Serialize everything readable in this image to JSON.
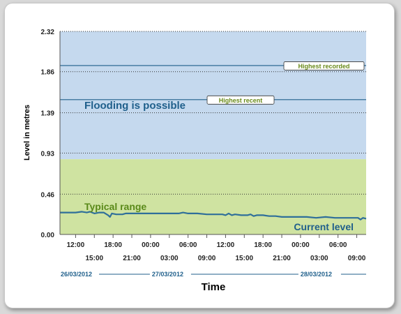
{
  "chart_data": {
    "type": "line",
    "ylabel": "Level in metres",
    "xlabel": "Time",
    "ylim": [
      0.0,
      2.32
    ],
    "yticks": [
      "2.32",
      "1.86",
      "1.39",
      "0.93",
      "0.46",
      "0.00"
    ],
    "ytick_values": [
      2.32,
      1.86,
      1.39,
      0.93,
      0.46,
      0.0
    ],
    "xlim_hours": [
      -2.5,
      46.5
    ],
    "xticks": [
      {
        "label": "12:00",
        "hour": 0
      },
      {
        "label": "15:00",
        "hour": 3
      },
      {
        "label": "18:00",
        "hour": 6
      },
      {
        "label": "21:00",
        "hour": 9
      },
      {
        "label": "00:00",
        "hour": 12
      },
      {
        "label": "03:00",
        "hour": 15
      },
      {
        "label": "06:00",
        "hour": 18
      },
      {
        "label": "09:00",
        "hour": 21
      },
      {
        "label": "12:00",
        "hour": 24
      },
      {
        "label": "15:00",
        "hour": 27
      },
      {
        "label": "18:00",
        "hour": 30
      },
      {
        "label": "21:00",
        "hour": 33
      },
      {
        "label": "00:00",
        "hour": 36
      },
      {
        "label": "03:00",
        "hour": 39
      },
      {
        "label": "06:00",
        "hour": 42
      },
      {
        "label": "09:00",
        "hour": 45
      }
    ],
    "dates": [
      {
        "label": "26/03/2012",
        "start_hour": -2.5,
        "end_hour": 12
      },
      {
        "label": "27/03/2012",
        "start_hour": 12,
        "end_hour": 36
      },
      {
        "label": "28/03/2012",
        "start_hour": 36,
        "end_hour": 46.5
      }
    ],
    "zones": [
      {
        "name": "Flooding is possible",
        "from": 0.86,
        "to": 2.32,
        "color": "#c5d9ee"
      },
      {
        "name": "Typical range",
        "from": 0.0,
        "to": 0.86,
        "color": "#cfe3a1"
      }
    ],
    "thresholds": [
      {
        "label": "Highest recorded",
        "value": 1.93
      },
      {
        "label": "Highest recent",
        "value": 1.54
      }
    ],
    "series": [
      {
        "name": "Current level",
        "color": "#2f6f9a",
        "points": [
          [
            -2.5,
            0.25
          ],
          [
            -1.0,
            0.25
          ],
          [
            0.0,
            0.25
          ],
          [
            1.0,
            0.26
          ],
          [
            1.8,
            0.25
          ],
          [
            2.3,
            0.26
          ],
          [
            3.0,
            0.24
          ],
          [
            3.8,
            0.25
          ],
          [
            4.5,
            0.25
          ],
          [
            5.2,
            0.22
          ],
          [
            5.5,
            0.2
          ],
          [
            5.8,
            0.24
          ],
          [
            6.5,
            0.23
          ],
          [
            7.5,
            0.23
          ],
          [
            8.0,
            0.24
          ],
          [
            9.0,
            0.24
          ],
          [
            10.5,
            0.24
          ],
          [
            12.0,
            0.24
          ],
          [
            13.5,
            0.24
          ],
          [
            15.0,
            0.24
          ],
          [
            16.5,
            0.24
          ],
          [
            17.2,
            0.25
          ],
          [
            18.0,
            0.24
          ],
          [
            19.5,
            0.24
          ],
          [
            21.0,
            0.23
          ],
          [
            22.5,
            0.23
          ],
          [
            23.5,
            0.23
          ],
          [
            24.0,
            0.22
          ],
          [
            24.5,
            0.24
          ],
          [
            25.0,
            0.22
          ],
          [
            25.5,
            0.23
          ],
          [
            26.5,
            0.22
          ],
          [
            27.5,
            0.22
          ],
          [
            28.0,
            0.23
          ],
          [
            28.5,
            0.21
          ],
          [
            29.0,
            0.22
          ],
          [
            30.0,
            0.22
          ],
          [
            31.0,
            0.21
          ],
          [
            32.0,
            0.21
          ],
          [
            33.0,
            0.2
          ],
          [
            34.0,
            0.2
          ],
          [
            35.5,
            0.2
          ],
          [
            37.0,
            0.2
          ],
          [
            38.5,
            0.19
          ],
          [
            40.0,
            0.2
          ],
          [
            41.5,
            0.19
          ],
          [
            43.0,
            0.19
          ],
          [
            44.5,
            0.19
          ],
          [
            45.2,
            0.19
          ],
          [
            45.6,
            0.17
          ],
          [
            46.0,
            0.19
          ],
          [
            46.5,
            0.18
          ]
        ]
      }
    ]
  }
}
